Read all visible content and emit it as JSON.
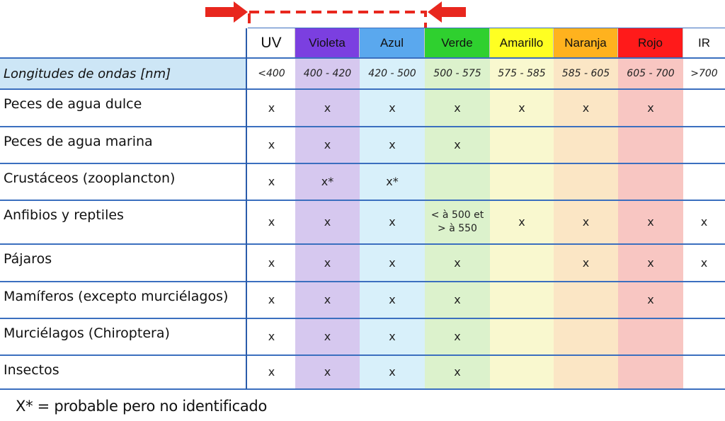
{
  "columns": [
    {
      "name": "UV",
      "range": "<400",
      "header_bg": "#ffffff",
      "column_bg": "#ffffff"
    },
    {
      "name": "Violeta",
      "range": "400 - 420",
      "header_bg": "#7b3fe0",
      "column_bg": "#d6c8ef"
    },
    {
      "name": "Azul",
      "range": "420 - 500",
      "header_bg": "#5aa8ee",
      "column_bg": "#d8f0fa"
    },
    {
      "name": "Verde",
      "range": "500 - 575",
      "header_bg": "#2fd02f",
      "column_bg": "#dcf2cc"
    },
    {
      "name": "Amarillo",
      "range": "575 - 585",
      "header_bg": "#ffff22",
      "column_bg": "#f9f8cf"
    },
    {
      "name": "Naranja",
      "range": "585 - 605",
      "header_bg": "#ffb21e",
      "column_bg": "#fbe6c5"
    },
    {
      "name": "Rojo",
      "range": "605 - 700",
      "header_bg": "#ff1a1a",
      "column_bg": "#f8c6c2"
    },
    {
      "name": "IR",
      "range": ">700",
      "header_bg": "#ffffff",
      "column_bg": "#ffffff"
    }
  ],
  "range_header_label": "Longitudes de ondas [nm]",
  "rows": [
    {
      "label": "Peces de agua dulce",
      "marks": [
        "x",
        "x",
        "x",
        "x",
        "x",
        "x",
        "x",
        ""
      ]
    },
    {
      "label": "Peces de agua marina",
      "marks": [
        "x",
        "x",
        "x",
        "x",
        "",
        "",
        "",
        ""
      ]
    },
    {
      "label": "Crustáceos (zooplancton)",
      "marks": [
        "x",
        "x*",
        "x*",
        "",
        "",
        "",
        "",
        ""
      ]
    },
    {
      "label": "Anfibios y reptiles",
      "marks": [
        "x",
        "x",
        "x",
        "< à 500 et\n> à 550",
        "x",
        "x",
        "x",
        "x"
      ]
    },
    {
      "label": "Pájaros",
      "marks": [
        "x",
        "x",
        "x",
        "x",
        "",
        "x",
        "x",
        "x"
      ]
    },
    {
      "label": "Mamíferos (excepto murciélagos)",
      "marks": [
        "x",
        "x",
        "x",
        "x",
        "",
        "",
        "x",
        ""
      ]
    },
    {
      "label": "Murciélagos (Chiroptera)",
      "marks": [
        "x",
        "x",
        "x",
        "x",
        "",
        "",
        "",
        ""
      ]
    },
    {
      "label": "Insectos",
      "marks": [
        "x",
        "x",
        "x",
        "x",
        "",
        "",
        "",
        ""
      ]
    }
  ],
  "legend": "X* = probable pero no identificado",
  "colors": {
    "grid_line": "#3b6fbf",
    "range_label_bg": "#cde6f6",
    "highlight_dash": "#e8271e",
    "arrow": "#e8271e"
  }
}
